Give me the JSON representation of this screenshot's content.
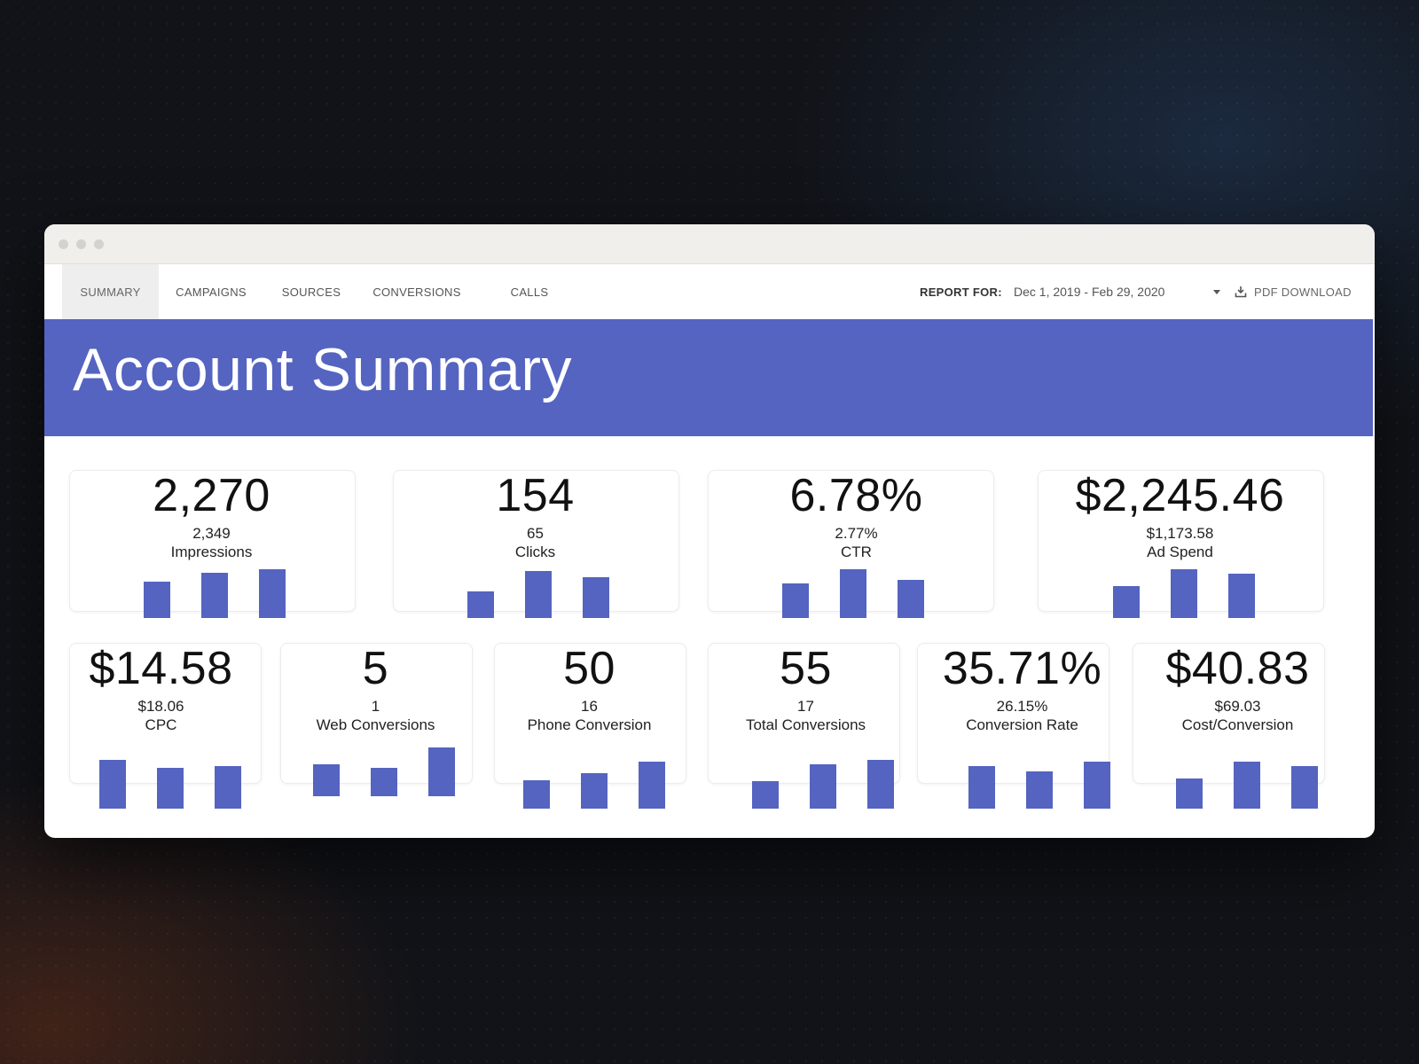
{
  "colors": {
    "accent": "#5464c0",
    "page_bg": "#111318"
  },
  "nav": {
    "tabs": [
      {
        "label": "SUMMARY",
        "active": true
      },
      {
        "label": "CAMPAIGNS",
        "active": false
      },
      {
        "label": "SOURCES",
        "active": false
      },
      {
        "label": "CONVERSIONS",
        "active": false
      },
      {
        "label": "CALLS",
        "active": false
      }
    ],
    "report_label": "REPORT FOR:",
    "date_range": "Dec 1, 2019 - Feb 29, 2020",
    "dropdown_icon": "caret-down-icon",
    "pdf_icon": "download-icon",
    "pdf_label": "PDF DOWNLOAD"
  },
  "banner": {
    "title": "Account Summary"
  },
  "metrics_row1": [
    {
      "value": "2,270",
      "previous": "2,349",
      "label": "Impressions",
      "bars": [
        0.74,
        0.93,
        1.0
      ]
    },
    {
      "value": "154",
      "previous": "65",
      "label": "Clicks",
      "bars": [
        0.55,
        0.96,
        0.84
      ]
    },
    {
      "value": "6.78%",
      "previous": "2.77%",
      "label": "CTR",
      "bars": [
        0.7,
        1.0,
        0.78
      ]
    },
    {
      "value": "$2,245.46",
      "previous": "$1,173.58",
      "label": "Ad Spend",
      "bars": [
        0.66,
        1.0,
        0.91
      ]
    }
  ],
  "metrics_row2": [
    {
      "value": "$14.58",
      "previous": "$18.06",
      "label": "CPC",
      "bars": [
        1.0,
        0.84,
        0.88
      ]
    },
    {
      "value": "5",
      "previous": "1",
      "label": "Web Conversions",
      "bars": [
        0.65,
        0.58,
        1.0
      ]
    },
    {
      "value": "50",
      "previous": "16",
      "label": "Phone Conversion",
      "bars": [
        0.58,
        0.73,
        0.96
      ]
    },
    {
      "value": "55",
      "previous": "17",
      "label": "Total Conversions",
      "bars": [
        0.57,
        0.9,
        1.0
      ]
    },
    {
      "value": "35.71%",
      "previous": "26.15%",
      "label": "Conversion Rate",
      "bars": [
        0.87,
        0.76,
        0.96
      ]
    },
    {
      "value": "$40.83",
      "previous": "$69.03",
      "label": "Cost/Conversion",
      "bars": [
        0.62,
        0.96,
        0.88
      ]
    }
  ]
}
